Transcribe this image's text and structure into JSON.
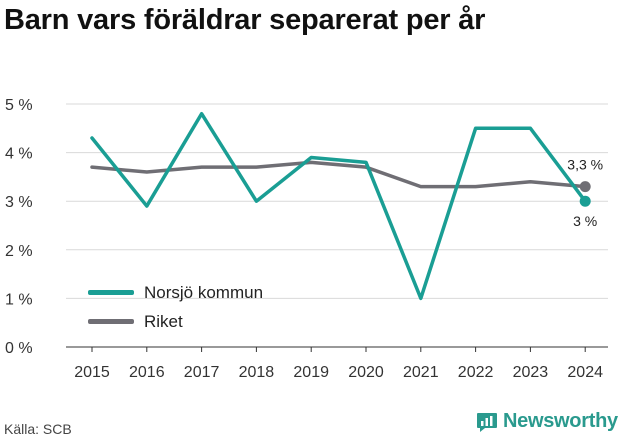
{
  "title": "Barn vars föräldrar separerat per år",
  "source": "Källa: SCB",
  "brand": "Newsworthy",
  "chart_data": {
    "type": "line",
    "categories": [
      "2015",
      "2016",
      "2017",
      "2018",
      "2019",
      "2020",
      "2021",
      "2022",
      "2023",
      "2024"
    ],
    "ylim": [
      0,
      5
    ],
    "yticks": [
      0,
      1,
      2,
      3,
      4,
      5
    ],
    "ytick_labels": [
      "0 %",
      "1 %",
      "2 %",
      "3 %",
      "4 %",
      "5 %"
    ],
    "series": [
      {
        "name": "Norsjö kommun",
        "color": "#1a9e94",
        "values": [
          4.3,
          2.9,
          4.8,
          3.0,
          3.9,
          3.8,
          1.0,
          4.5,
          4.5,
          3.0
        ],
        "end_label": "3 %"
      },
      {
        "name": "Riket",
        "color": "#6f6e74",
        "values": [
          3.7,
          3.6,
          3.7,
          3.7,
          3.8,
          3.7,
          3.3,
          3.3,
          3.4,
          3.3
        ],
        "end_label": "3,3 %"
      }
    ],
    "grid": true,
    "legend_position": "bottom-left"
  }
}
